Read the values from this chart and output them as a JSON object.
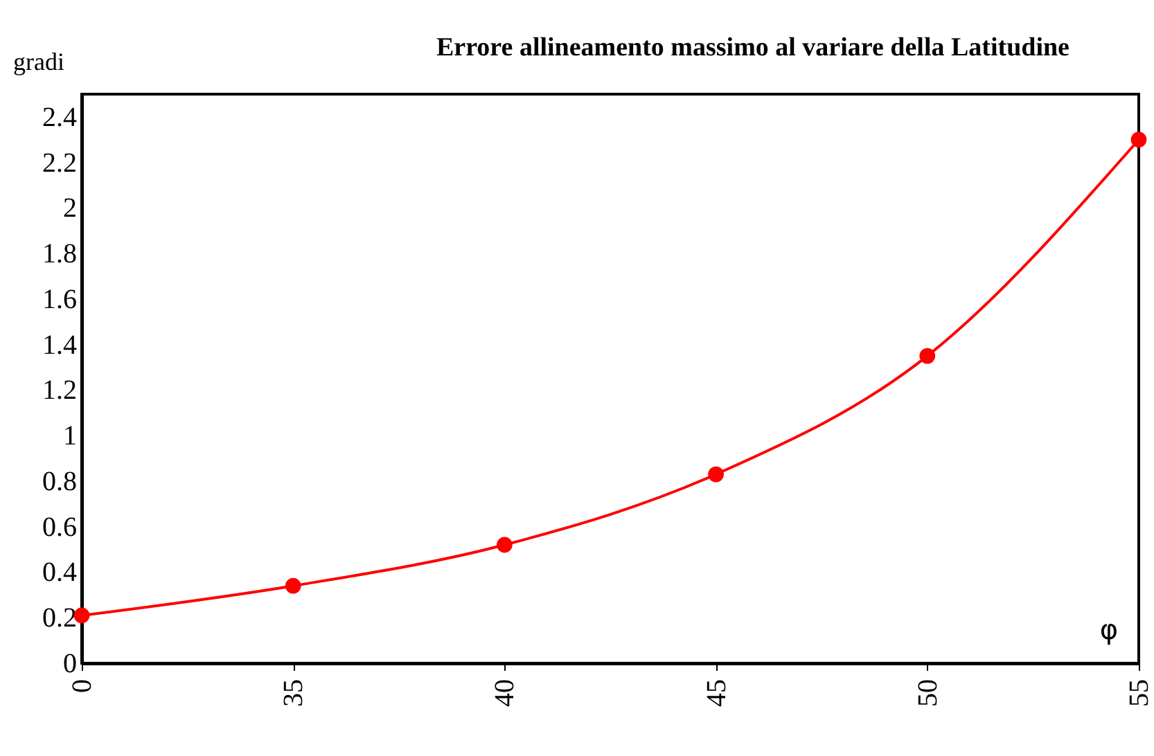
{
  "chart_data": {
    "type": "line",
    "title": "Errore allineamento massimo al variare  della Latitudine",
    "ylabel": "gradi",
    "xlabel": "φ",
    "categories": [
      "0",
      "35",
      "40",
      "45",
      "50",
      "55"
    ],
    "series": [
      {
        "color": "#ff0000",
        "values": [
          0.21,
          0.34,
          0.52,
          0.83,
          1.35,
          2.3
        ]
      }
    ],
    "ylim": [
      0,
      2.5
    ],
    "yticks": [
      0,
      0.2,
      0.4,
      0.6,
      0.8,
      1,
      1.2,
      1.4,
      1.6,
      1.8,
      2,
      2.2,
      2.4
    ],
    "marker": "circle",
    "grid": false,
    "legend": false
  }
}
